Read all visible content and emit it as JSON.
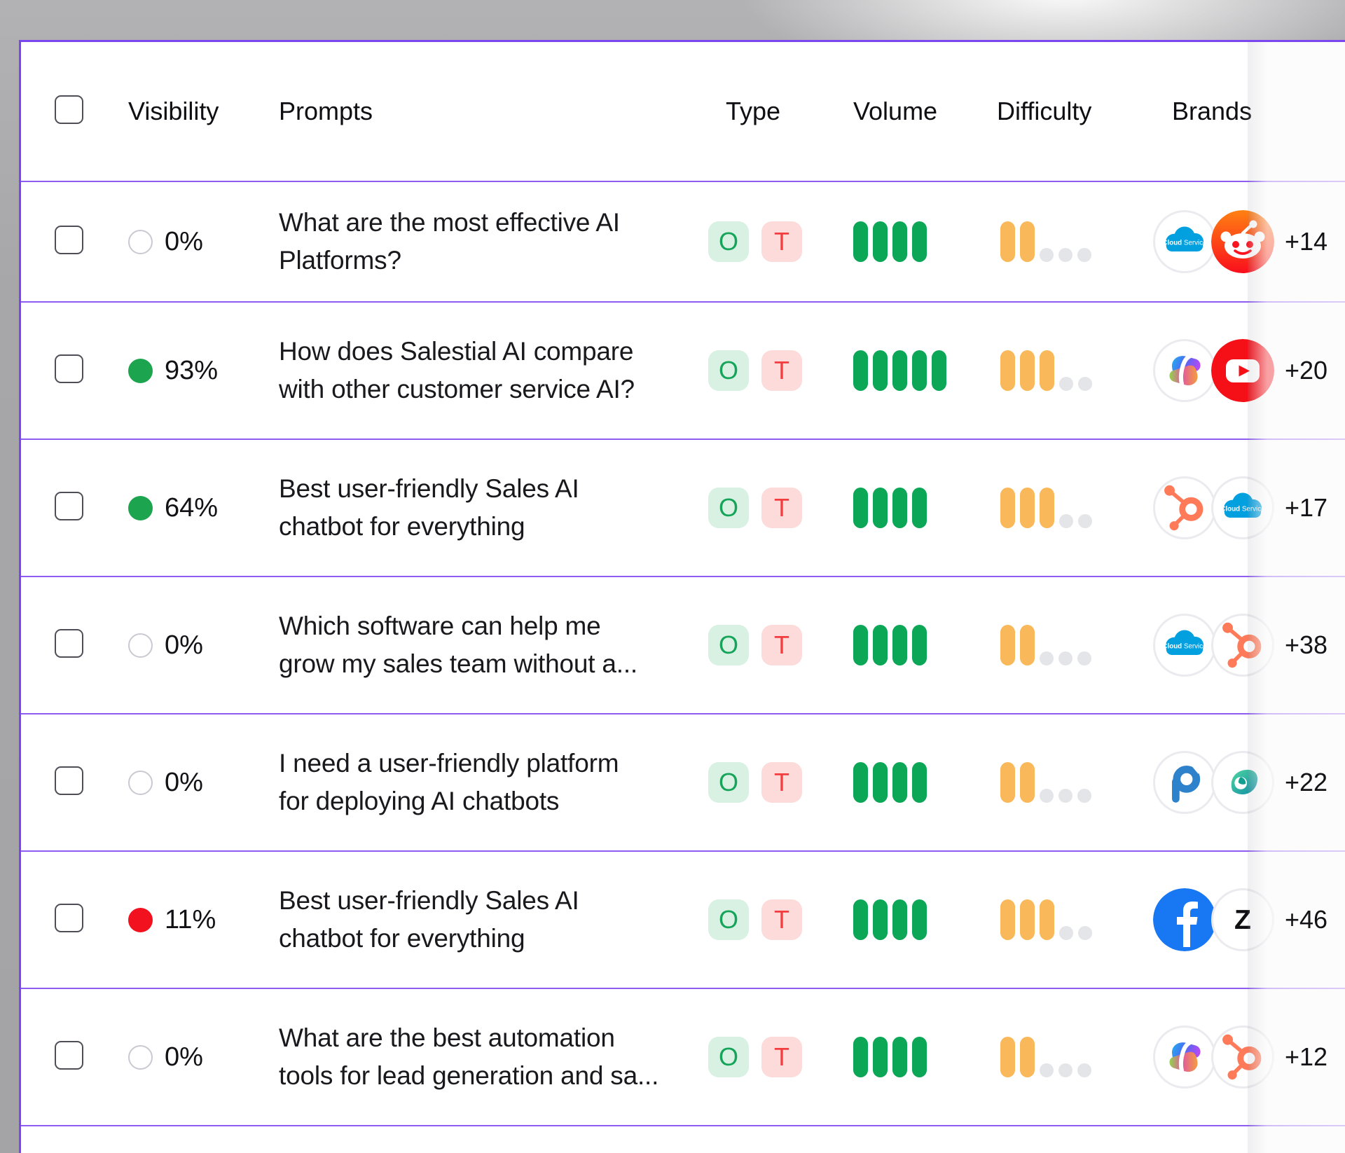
{
  "table": {
    "header": {
      "visibility": "Visibility",
      "prompts": "Prompts",
      "type": "Type",
      "volume": "Volume",
      "difficulty": "Difficulty",
      "brands": "Brands"
    },
    "meter_max": 5,
    "rows": [
      {
        "visibility": "0%",
        "dot": "empty",
        "prompt": "What are the most effective AI Platforms?",
        "prompt_lines": [
          "What are the most effective AI",
          "Platforms?"
        ],
        "types": [
          "O",
          "T"
        ],
        "volume": 4,
        "difficulty": 2,
        "brands": [
          "cloud-service",
          "reddit"
        ],
        "more": "+14"
      },
      {
        "visibility": "93%",
        "dot": "green",
        "prompt": "How does Salestial AI compare with other customer service AI?",
        "prompt_lines": [
          "How does Salestial AI compare",
          "with other customer service AI?"
        ],
        "types": [
          "O",
          "T"
        ],
        "volume": 5,
        "difficulty": 3,
        "brands": [
          "copilot",
          "youtube"
        ],
        "more": "+20"
      },
      {
        "visibility": "64%",
        "dot": "green",
        "prompt": "Best user-friendly Sales AI chatbot for everything",
        "prompt_lines": [
          "Best user-friendly Sales AI",
          "chatbot for everything"
        ],
        "types": [
          "O",
          "T"
        ],
        "volume": 4,
        "difficulty": 3,
        "brands": [
          "hubspot",
          "cloud-service"
        ],
        "more": "+17"
      },
      {
        "visibility": "0%",
        "dot": "empty",
        "prompt": "Which software can help me grow my sales team without a...",
        "prompt_lines": [
          "Which software can help me",
          "grow my sales team without a..."
        ],
        "types": [
          "O",
          "T"
        ],
        "volume": 4,
        "difficulty": 2,
        "brands": [
          "cloud-service",
          "hubspot"
        ],
        "more": "+38"
      },
      {
        "visibility": "0%",
        "dot": "empty",
        "prompt": "I need a user-friendly platform for deploying AI chatbots",
        "prompt_lines": [
          "I need a user-friendly platform",
          "for deploying AI chatbots"
        ],
        "types": [
          "O",
          "T"
        ],
        "volume": 4,
        "difficulty": 2,
        "brands": [
          "p-chat",
          "leaf-bird"
        ],
        "more": "+22"
      },
      {
        "visibility": "11%",
        "dot": "red",
        "prompt": "Best user-friendly Sales AI chatbot for everything",
        "prompt_lines": [
          "Best user-friendly Sales AI",
          "chatbot for everything"
        ],
        "types": [
          "O",
          "T"
        ],
        "volume": 4,
        "difficulty": 3,
        "brands": [
          "facebook",
          "zendesk"
        ],
        "more": "+46"
      },
      {
        "visibility": "0%",
        "dot": "empty",
        "prompt": "What are the best automation tools for lead generation and sa...",
        "prompt_lines": [
          "What are the best automation",
          "tools for lead generation and sa..."
        ],
        "types": [
          "O",
          "T"
        ],
        "volume": 4,
        "difficulty": 2,
        "brands": [
          "copilot",
          "hubspot"
        ],
        "more": "+12"
      }
    ]
  },
  "colors": {
    "card_border": "#7b46ef",
    "row_divider": "#8e5cf3",
    "volume_bar": "#0ba656",
    "difficulty_bar": "#f9b85a",
    "empty_meter_dot": "#e4e5e9",
    "visibility_green": "#1da44f",
    "visibility_red": "#f2111e",
    "type_o_bg": "#d9f1e3",
    "type_o_text": "#16a45a",
    "type_t_bg": "#fcdbda",
    "type_t_text": "#f23e3e",
    "background_gray": "#a7a7a9"
  }
}
